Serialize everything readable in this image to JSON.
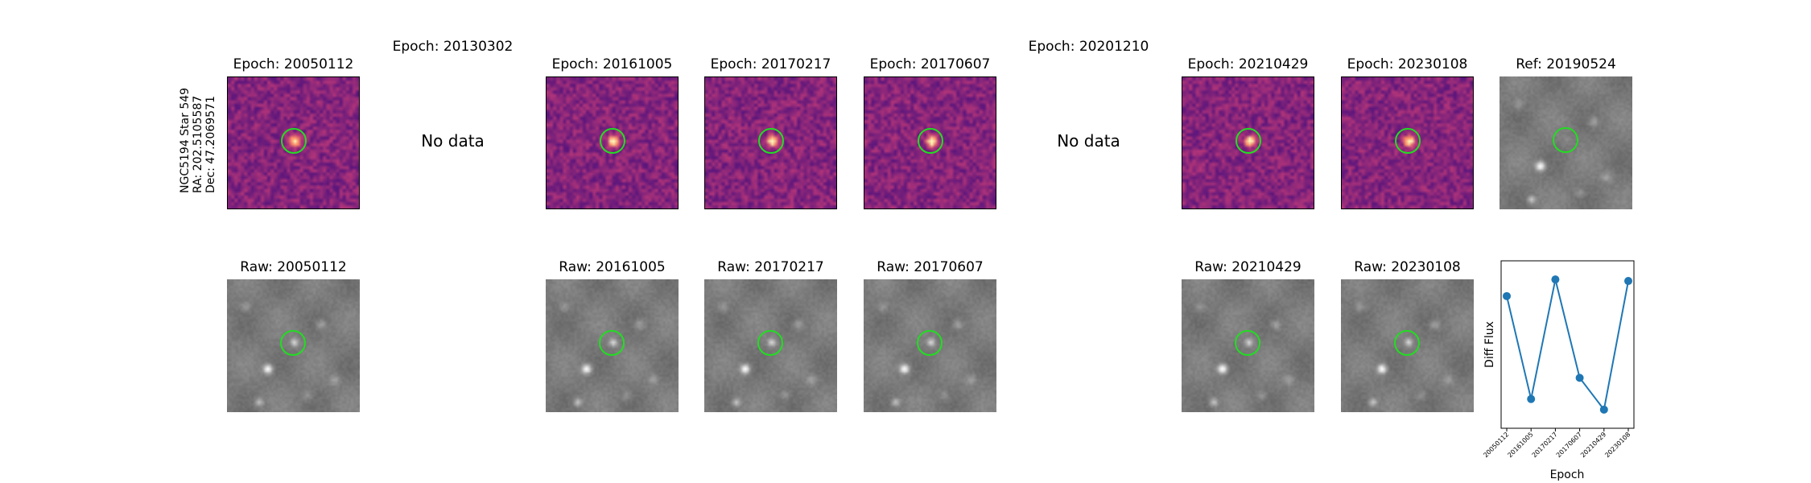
{
  "object": {
    "name": "NGC5194 Star 549",
    "ra": "RA: 202.5105587",
    "dec": "Dec: 47.2069571"
  },
  "top_row": [
    {
      "title": "Epoch: 20050112",
      "has_data": true,
      "style": "diff"
    },
    {
      "title": "Epoch: 20130302",
      "has_data": false,
      "message": "No data"
    },
    {
      "title": "Epoch: 20161005",
      "has_data": true,
      "style": "diff"
    },
    {
      "title": "Epoch: 20170217",
      "has_data": true,
      "style": "diff"
    },
    {
      "title": "Epoch: 20170607",
      "has_data": true,
      "style": "diff"
    },
    {
      "title": "Epoch: 20201210",
      "has_data": false,
      "message": "No data"
    },
    {
      "title": "Epoch: 20210429",
      "has_data": true,
      "style": "diff"
    },
    {
      "title": "Epoch: 20230108",
      "has_data": true,
      "style": "diff"
    },
    {
      "title": "Ref: 20190524",
      "has_data": true,
      "style": "raw"
    }
  ],
  "bottom_row": [
    {
      "title": "Raw: 20050112"
    },
    {
      "title": "Raw: 20161005"
    },
    {
      "title": "Raw: 20170217"
    },
    {
      "title": "Raw: 20170607"
    },
    {
      "title": "Raw: 20210429"
    },
    {
      "title": "Raw: 20230108"
    }
  ],
  "colors": {
    "circle": "#22dd22",
    "line": "#1f77b4"
  },
  "chart_data": {
    "type": "line",
    "categories": [
      "20050112",
      "20161005",
      "20170217",
      "20170607",
      "20210429",
      "20230108"
    ],
    "values": [
      0.82,
      0.14,
      0.93,
      0.28,
      0.07,
      0.92
    ],
    "xlabel": "Epoch",
    "ylabel": "Diff Flux",
    "ylim": [
      0,
      1
    ]
  }
}
